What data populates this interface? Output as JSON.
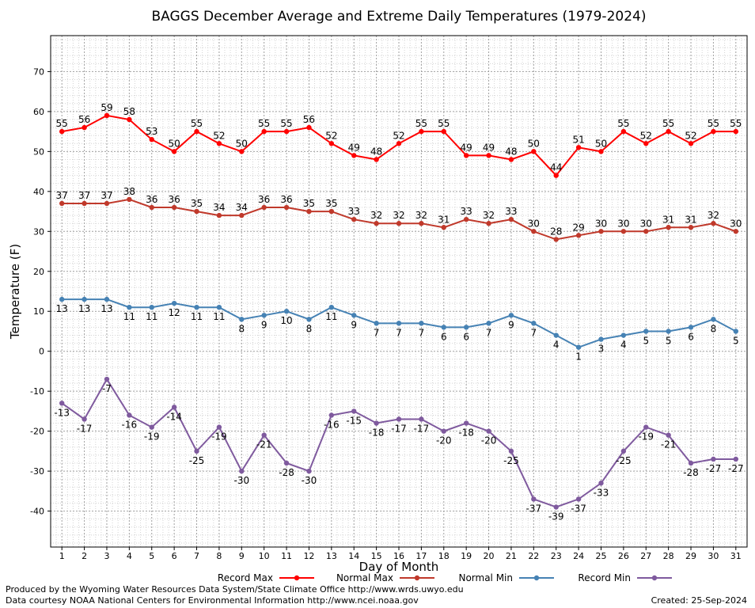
{
  "chart_data": {
    "type": "line",
    "title": "BAGGS December Average and Extreme Daily Temperatures (1979-2024)",
    "xlabel": "Day of Month",
    "ylabel": "Temperature (F)",
    "x": [
      1,
      2,
      3,
      4,
      5,
      6,
      7,
      8,
      9,
      10,
      11,
      12,
      13,
      14,
      15,
      16,
      17,
      18,
      19,
      20,
      21,
      22,
      23,
      24,
      25,
      26,
      27,
      28,
      29,
      30,
      31
    ],
    "xlim": [
      0.5,
      31.5
    ],
    "ylim": [
      -49,
      79
    ],
    "yticks": [
      -40,
      -30,
      -20,
      -10,
      0,
      10,
      20,
      30,
      40,
      50,
      60,
      70
    ],
    "grid": true,
    "legend": "bottom",
    "series": [
      {
        "name": "Record Max",
        "color": "#ff0000",
        "label_position": "above",
        "values": [
          55,
          56,
          59,
          58,
          53,
          50,
          55,
          52,
          50,
          55,
          55,
          56,
          52,
          49,
          48,
          52,
          55,
          55,
          49,
          49,
          48,
          50,
          44,
          51,
          50,
          55,
          52,
          55,
          52,
          55,
          55
        ]
      },
      {
        "name": "Normal Max",
        "color": "#c0392b",
        "label_position": "above",
        "values": [
          37,
          37,
          37,
          38,
          36,
          36,
          35,
          34,
          34,
          36,
          36,
          35,
          35,
          33,
          32,
          32,
          32,
          31,
          33,
          32,
          33,
          30,
          28,
          29,
          30,
          30,
          30,
          31,
          31,
          32,
          30
        ]
      },
      {
        "name": "Normal Min",
        "color": "#4682b4",
        "label_position": "below",
        "values": [
          13,
          13,
          13,
          11,
          11,
          12,
          11,
          11,
          8,
          9,
          10,
          8,
          11,
          9,
          7,
          7,
          7,
          6,
          6,
          7,
          9,
          7,
          4,
          1,
          3,
          4,
          5,
          5,
          6,
          8,
          5
        ]
      },
      {
        "name": "Record Min",
        "color": "#7f5a9e",
        "label_position": "below",
        "values": [
          -13,
          -17,
          -7,
          -16,
          -19,
          -14,
          -25,
          -19,
          -30,
          -21,
          -28,
          -30,
          -16,
          -15,
          -18,
          -17,
          -17,
          -20,
          -18,
          -20,
          -25,
          -37,
          -39,
          -37,
          -33,
          -25,
          -19,
          -21,
          -28,
          -27,
          -27
        ]
      }
    ]
  },
  "footer": {
    "produced": "Produced by the Wyoming Water Resources Data System/State Climate Office http://www.wrds.uwyo.edu",
    "courtesy": "Data courtesy NOAA National Centers for Environmental Information http://www.ncei.noaa.gov",
    "created": "Created:  25-Sep-2024"
  }
}
